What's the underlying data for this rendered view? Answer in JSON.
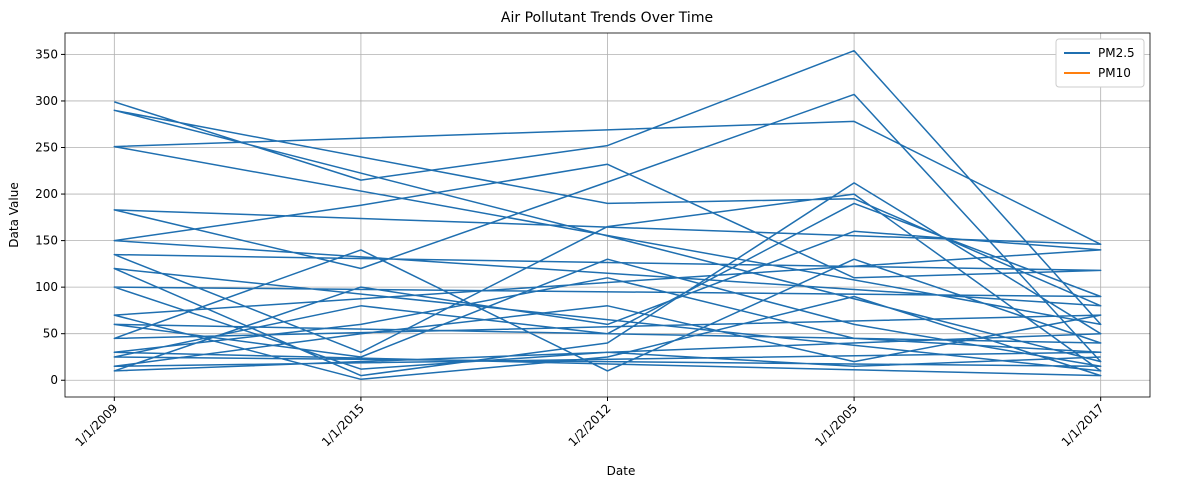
{
  "chart_data": {
    "type": "line",
    "title": "Air Pollutant Trends Over Time",
    "xlabel": "Date",
    "ylabel": "Data Value",
    "categories": [
      "1/1/2009",
      "1/1/2015",
      "1/2/2012",
      "1/1/2005",
      "1/1/2017"
    ],
    "x": [
      "1/1/2009",
      "1/1/2015",
      "1/2/2012",
      "1/1/2005",
      "1/1/2017",
      "1/1/2009",
      "1/1/2005",
      "1/1/2017",
      "1/1/2009",
      "1/1/2015",
      "1/2/2012",
      "1/1/2005",
      "1/1/2017",
      "1/1/2009",
      "1/2/2012",
      "1/1/2005",
      "1/1/2017",
      "1/1/2009",
      "1/1/2015",
      "1/2/2012",
      "1/1/2005",
      "1/1/2017",
      "1/1/2009",
      "1/1/2015",
      "1/2/2012",
      "1/1/2005",
      "1/1/2017",
      "1/1/2009",
      "1/1/2015",
      "1/2/2012",
      "1/1/2005",
      "1/1/2017",
      "1/1/2009",
      "1/1/2015",
      "1/2/2012",
      "1/1/2005",
      "1/1/2017",
      "1/1/2009",
      "1/1/2015",
      "1/2/2012",
      "1/1/2005",
      "1/1/2017",
      "1/1/2009",
      "1/1/2015",
      "1/2/2012",
      "1/1/2005",
      "1/1/2017",
      "1/1/2009",
      "1/1/2015",
      "1/2/2012",
      "1/1/2005",
      "1/1/2017",
      "1/1/2009",
      "1/1/2015",
      "1/2/2012",
      "1/1/2005",
      "1/1/2017",
      "1/1/2009",
      "1/1/2015",
      "1/2/2012",
      "1/1/2005",
      "1/1/2017",
      "1/1/2009",
      "1/1/2015",
      "1/2/2012",
      "1/1/2005",
      "1/1/2017",
      "1/1/2009",
      "1/1/2015",
      "1/2/2012",
      "1/1/2005",
      "1/1/2017"
    ],
    "series": [
      {
        "name": "PM2.5",
        "color": "#1f6fb0",
        "values": [
          299,
          215,
          252,
          354,
          60,
          251,
          278,
          146,
          183,
          120,
          213,
          307,
          20,
          290,
          190,
          195,
          80,
          150,
          188,
          232,
          110,
          118,
          135,
          30,
          165,
          200,
          10,
          120,
          5,
          40,
          212,
          50,
          10,
          100,
          60,
          160,
          140,
          70,
          1,
          25,
          90,
          5,
          30,
          60,
          110,
          45,
          30,
          15,
          50,
          80,
          20,
          70,
          45,
          140,
          10,
          130,
          40,
          60,
          25,
          130,
          60,
          15,
          25,
          80,
          50,
          190,
          90,
          100,
          12,
          30,
          15,
          25
        ]
      },
      {
        "name": "PM10",
        "color": "#ff7f0e",
        "values": [
          null,
          null,
          null,
          null,
          null,
          null,
          null,
          null,
          null,
          null,
          null,
          null,
          null,
          null,
          null,
          null,
          null,
          null,
          null,
          null,
          null,
          null,
          null,
          null,
          null,
          null,
          null,
          null,
          null,
          null,
          null,
          null,
          null,
          null,
          null,
          null,
          null,
          null,
          null,
          null,
          null,
          null,
          null,
          null,
          null,
          null,
          null,
          null,
          null,
          null,
          null,
          null,
          null,
          null,
          null,
          null,
          null,
          null,
          null,
          null,
          null,
          null,
          null,
          null,
          null,
          null,
          null,
          null,
          null,
          null,
          null,
          null
        ]
      }
    ],
    "ylim": [
      -18,
      373
    ],
    "yticks": [
      0,
      50,
      100,
      150,
      200,
      250,
      300,
      350
    ],
    "grid": true,
    "legend": "upper right"
  }
}
